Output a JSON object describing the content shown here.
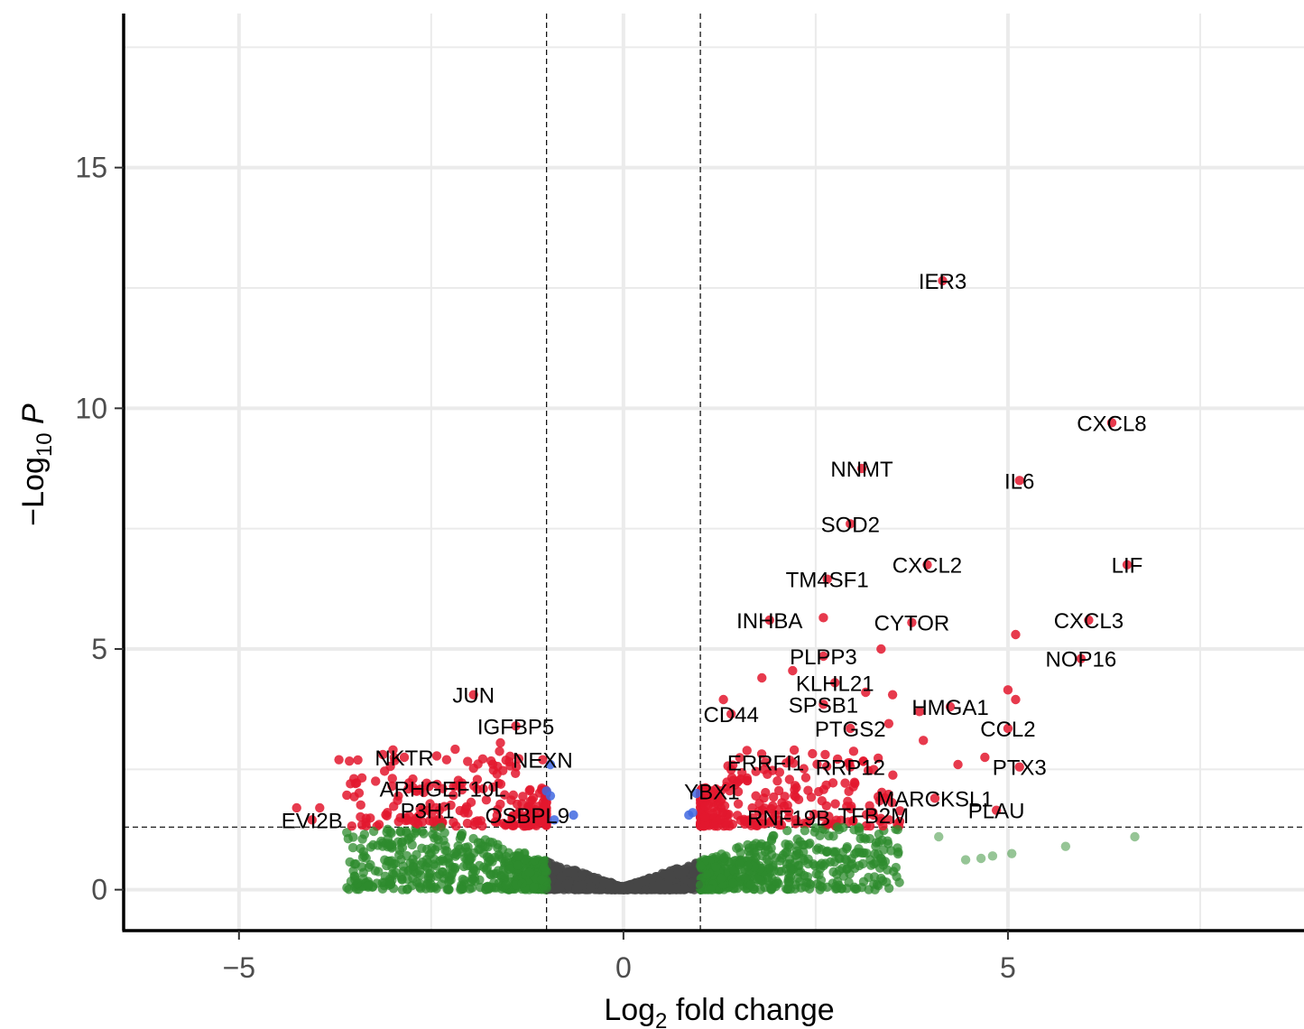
{
  "chart_data": {
    "type": "scatter",
    "title": "",
    "xlabel": {
      "base": "Log",
      "sub": "2",
      "rest": " fold change"
    },
    "ylabel": {
      "prefix": "−Log",
      "sub": "10",
      "italic": " P"
    },
    "xlim": [
      -6.5,
      8.85
    ],
    "ylim": [
      -0.85,
      18.2
    ],
    "x_ticks": [
      {
        "value": -5,
        "label": "−5"
      },
      {
        "value": 0,
        "label": "0"
      },
      {
        "value": 5,
        "label": "5"
      }
    ],
    "y_ticks": [
      {
        "value": 0,
        "label": "0"
      },
      {
        "value": 5,
        "label": "5"
      },
      {
        "value": 10,
        "label": "10"
      },
      {
        "value": 15,
        "label": "15"
      }
    ],
    "grid": true,
    "fc_cutoff": 1,
    "p_cutoff_neglog10": 1.3,
    "colors": {
      "ns": "#474747",
      "log2fc": "#2e8b2e",
      "p": "#4169e1",
      "p_and_log2fc": "#e3172e",
      "grid": "#ebebeb"
    },
    "labeled_genes": [
      {
        "gene": "IER3",
        "x": 4.15,
        "y": 12.65
      },
      {
        "gene": "CXCL8",
        "x": 6.35,
        "y": 9.7
      },
      {
        "gene": "NNMT",
        "x": 3.1,
        "y": 8.75
      },
      {
        "gene": "IL6",
        "x": 5.15,
        "y": 8.5
      },
      {
        "gene": "SOD2",
        "x": 2.95,
        "y": 7.6
      },
      {
        "gene": "CXCL2",
        "x": 3.95,
        "y": 6.75
      },
      {
        "gene": "LIF",
        "x": 6.55,
        "y": 6.75
      },
      {
        "gene": "TM4SF1",
        "x": 2.65,
        "y": 6.45
      },
      {
        "gene": "CYTOR",
        "x": 3.75,
        "y": 5.55
      },
      {
        "gene": "INHBA",
        "x": 1.9,
        "y": 5.6
      },
      {
        "gene": "CXCL3",
        "x": 6.05,
        "y": 5.6
      },
      {
        "gene": "PLPP3",
        "x": 2.6,
        "y": 4.85
      },
      {
        "gene": "NOP16",
        "x": 5.95,
        "y": 4.8
      },
      {
        "gene": "KLHL21",
        "x": 2.75,
        "y": 4.3
      },
      {
        "gene": "JUN",
        "x": -1.95,
        "y": 4.05
      },
      {
        "gene": "SPSB1",
        "x": 2.6,
        "y": 3.85
      },
      {
        "gene": "HMGA1",
        "x": 4.25,
        "y": 3.8
      },
      {
        "gene": "CD44",
        "x": 1.4,
        "y": 3.65
      },
      {
        "gene": "IGFBP5",
        "x": -1.4,
        "y": 3.4
      },
      {
        "gene": "PTGS2",
        "x": 2.95,
        "y": 3.35
      },
      {
        "gene": "CCL2",
        "x": 5.0,
        "y": 3.35
      },
      {
        "gene": "NEXN",
        "x": -1.05,
        "y": 2.7
      },
      {
        "gene": "NKTR",
        "x": -2.85,
        "y": 2.75
      },
      {
        "gene": "ERRFI1",
        "x": 1.85,
        "y": 2.65
      },
      {
        "gene": "PTX3",
        "x": 5.15,
        "y": 2.55
      },
      {
        "gene": "RRP12",
        "x": 2.95,
        "y": 2.55
      },
      {
        "gene": "ARHGEF10L",
        "x": -2.35,
        "y": 2.1
      },
      {
        "gene": "YBX1",
        "x": 1.15,
        "y": 2.05
      },
      {
        "gene": "MARCKSL1",
        "x": 4.05,
        "y": 1.9
      },
      {
        "gene": "PLAU",
        "x": 4.85,
        "y": 1.65
      },
      {
        "gene": "P3H1",
        "x": -2.55,
        "y": 1.65
      },
      {
        "gene": "OSBPL9",
        "x": -1.25,
        "y": 1.55
      },
      {
        "gene": "RNF19B",
        "x": 2.15,
        "y": 1.5
      },
      {
        "gene": "TFB2M",
        "x": 3.25,
        "y": 1.55
      },
      {
        "gene": "EVI2B",
        "x": -4.05,
        "y": 1.45
      }
    ],
    "extra_significant_points": [
      {
        "x": 5.1,
        "y": 5.3
      },
      {
        "x": 5.0,
        "y": 4.15
      },
      {
        "x": 5.1,
        "y": 3.95
      },
      {
        "x": 3.35,
        "y": 5.0
      },
      {
        "x": 2.6,
        "y": 5.65
      },
      {
        "x": 3.15,
        "y": 4.1
      },
      {
        "x": 3.5,
        "y": 4.05
      },
      {
        "x": 3.85,
        "y": 3.7
      },
      {
        "x": 3.45,
        "y": 3.45
      },
      {
        "x": 3.9,
        "y": 3.1
      },
      {
        "x": 4.35,
        "y": 2.6
      },
      {
        "x": 4.7,
        "y": 2.75
      },
      {
        "x": 1.3,
        "y": 3.95
      },
      {
        "x": 1.8,
        "y": 4.4
      },
      {
        "x": 2.2,
        "y": 4.55
      },
      {
        "x": -3.7,
        "y": 2.7
      },
      {
        "x": -3.55,
        "y": 2.2
      },
      {
        "x": -4.25,
        "y": 1.7
      },
      {
        "x": -3.95,
        "y": 1.7
      },
      {
        "x": -2.3,
        "y": 2.7
      },
      {
        "x": -1.6,
        "y": 3.05
      }
    ],
    "extra_faded_green": [
      {
        "x": 5.05,
        "y": 0.75
      },
      {
        "x": 4.8,
        "y": 0.7
      },
      {
        "x": 4.65,
        "y": 0.65
      },
      {
        "x": 4.45,
        "y": 0.62
      },
      {
        "x": 5.75,
        "y": 0.9
      },
      {
        "x": 6.65,
        "y": 1.1
      },
      {
        "x": 4.1,
        "y": 1.1
      }
    ],
    "extra_blue_points": [
      {
        "x": -0.95,
        "y": 2.6
      },
      {
        "x": -1.0,
        "y": 2.05
      },
      {
        "x": -0.95,
        "y": 1.95
      },
      {
        "x": -0.65,
        "y": 1.55
      },
      {
        "x": -0.9,
        "y": 1.45
      },
      {
        "x": 0.95,
        "y": 2.0
      },
      {
        "x": 0.85,
        "y": 1.55
      },
      {
        "x": 0.9,
        "y": 1.6
      }
    ]
  }
}
